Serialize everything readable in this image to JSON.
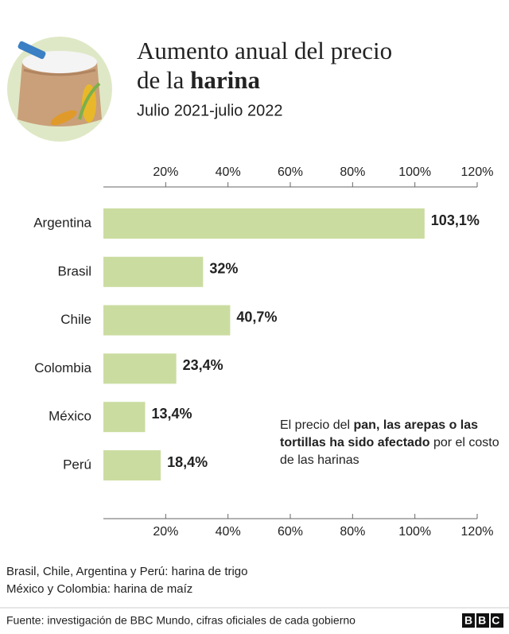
{
  "chart_data": {
    "type": "bar",
    "title_line1": "Aumento anual del precio",
    "title_line2": "de la",
    "title_bold": "harina",
    "subtitle": "Julio 2021-julio 2022",
    "categories": [
      "Argentina",
      "Brasil",
      "Chile",
      "Colombia",
      "México",
      "Perú"
    ],
    "values": [
      103.1,
      32,
      40.7,
      23.4,
      13.4,
      18.4
    ],
    "value_labels": [
      "103,1%",
      "32%",
      "40,7%",
      "23,4%",
      "13,4%",
      "18,4%"
    ],
    "color": "#cbdca1",
    "xlim": [
      0,
      120
    ],
    "xticks": [
      {
        "value": 20,
        "label": "20%"
      },
      {
        "value": 40,
        "label": "40%"
      },
      {
        "value": 60,
        "label": "60%"
      },
      {
        "value": 80,
        "label": "80%"
      },
      {
        "value": 100,
        "label": "100%"
      },
      {
        "value": 120,
        "label": "120%"
      }
    ],
    "annotation": [
      "El precio del",
      "pan, las arepas o las tortillas ha sido afectado",
      "por el costo de las harinas"
    ],
    "notes": [
      "Brasil, Chile, Argentina y Perú: harina de trigo",
      "México y Colombia: harina de maíz"
    ],
    "source": "Fuente: investigación de BBC Mundo, cifras oficiales de cada gobierno",
    "logo": "BBC"
  }
}
